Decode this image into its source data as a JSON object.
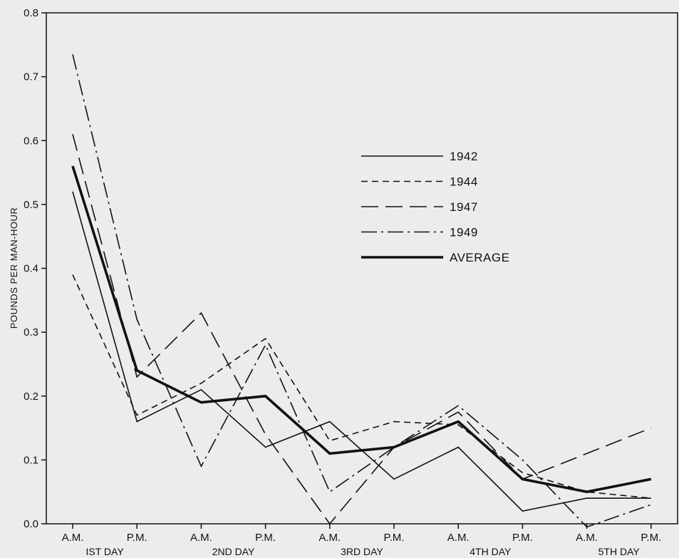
{
  "chart_data": {
    "type": "line",
    "ylabel": "POUNDS PER MAN-HOUR",
    "ylim": [
      0.0,
      0.8
    ],
    "yticks": [
      "0.0",
      "0.1",
      "0.2",
      "0.3",
      "0.4",
      "0.5",
      "0.6",
      "0.7",
      "0.8"
    ],
    "categories": [
      "A.M.",
      "P.M.",
      "A.M.",
      "P.M.",
      "A.M.",
      "P.M.",
      "A.M.",
      "P.M.",
      "A.M.",
      "P.M."
    ],
    "day_labels": [
      "IST DAY",
      "2ND DAY",
      "3RD DAY",
      "4TH DAY",
      "5TH DAY"
    ],
    "grid": false,
    "legend_position": "top-right",
    "series": [
      {
        "name": "1942",
        "style": "solid",
        "values": [
          0.52,
          0.16,
          0.21,
          0.12,
          0.16,
          0.07,
          0.12,
          0.02,
          0.04,
          0.04
        ]
      },
      {
        "name": "1944",
        "style": "dashed",
        "values": [
          0.39,
          0.17,
          0.22,
          0.29,
          0.13,
          0.16,
          0.155,
          0.08,
          0.05,
          0.04
        ]
      },
      {
        "name": "1947",
        "style": "longdash",
        "values": [
          0.61,
          0.23,
          0.33,
          0.14,
          0.0,
          0.12,
          0.175,
          0.07,
          0.11,
          0.15
        ]
      },
      {
        "name": "1949",
        "style": "dashdot",
        "values": [
          0.735,
          0.32,
          0.09,
          0.28,
          0.05,
          0.12,
          0.185,
          0.1,
          -0.005,
          0.03
        ]
      },
      {
        "name": "AVERAGE",
        "style": "thick",
        "values": [
          0.56,
          0.24,
          0.19,
          0.2,
          0.11,
          0.12,
          0.16,
          0.07,
          0.05,
          0.07
        ]
      }
    ]
  }
}
